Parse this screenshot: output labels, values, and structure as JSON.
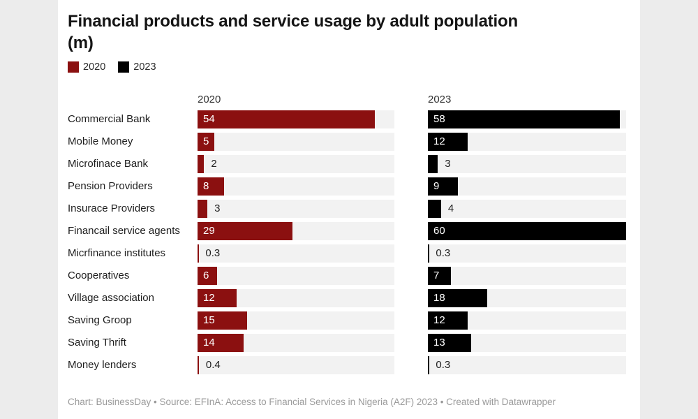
{
  "title": {
    "line1": "Financial products and service usage by adult population",
    "line2": "(m)"
  },
  "legend": [
    {
      "label": "2020",
      "color": "#8b1010"
    },
    {
      "label": "2023",
      "color": "#000000"
    }
  ],
  "footer": "Chart: BusinessDay • Source: EFInA: Access to Financial Services in Nigeria (A2F) 2023 • Created with Datawrapper",
  "colors": {
    "page_background": "#ececec",
    "card_background": "#ffffff",
    "bar_track": "#f2f2f2",
    "series_2020": "#8b1010",
    "series_2023": "#000000",
    "value_inside": "#ffffff",
    "value_outside": "#222222",
    "footer_text": "#9a9a9a"
  },
  "chart_data": {
    "type": "bar",
    "orientation": "horizontal",
    "title": "Financial products and service usage by adult population (m)",
    "categories": [
      "Commercial Bank",
      "Mobile Money",
      "Microfinace Bank",
      "Pension Providers",
      "Insurace Providers",
      "Financail service agents",
      "Micrfinance institutes",
      "Cooperatives",
      "Village association",
      "Saving Groop",
      "Saving Thrift",
      "Money lenders"
    ],
    "series": [
      {
        "name": "2020",
        "color": "#8b1010",
        "values": [
          54,
          5,
          2,
          8,
          3,
          29,
          0.3,
          6,
          12,
          15,
          14,
          0.4
        ]
      },
      {
        "name": "2023",
        "color": "#000000",
        "values": [
          58,
          12,
          3,
          9,
          4,
          60,
          0.3,
          7,
          18,
          12,
          13,
          0.3
        ]
      }
    ],
    "xlim": [
      0,
      60
    ],
    "grid": false,
    "legend_position": "top-left",
    "value_labels": true
  }
}
